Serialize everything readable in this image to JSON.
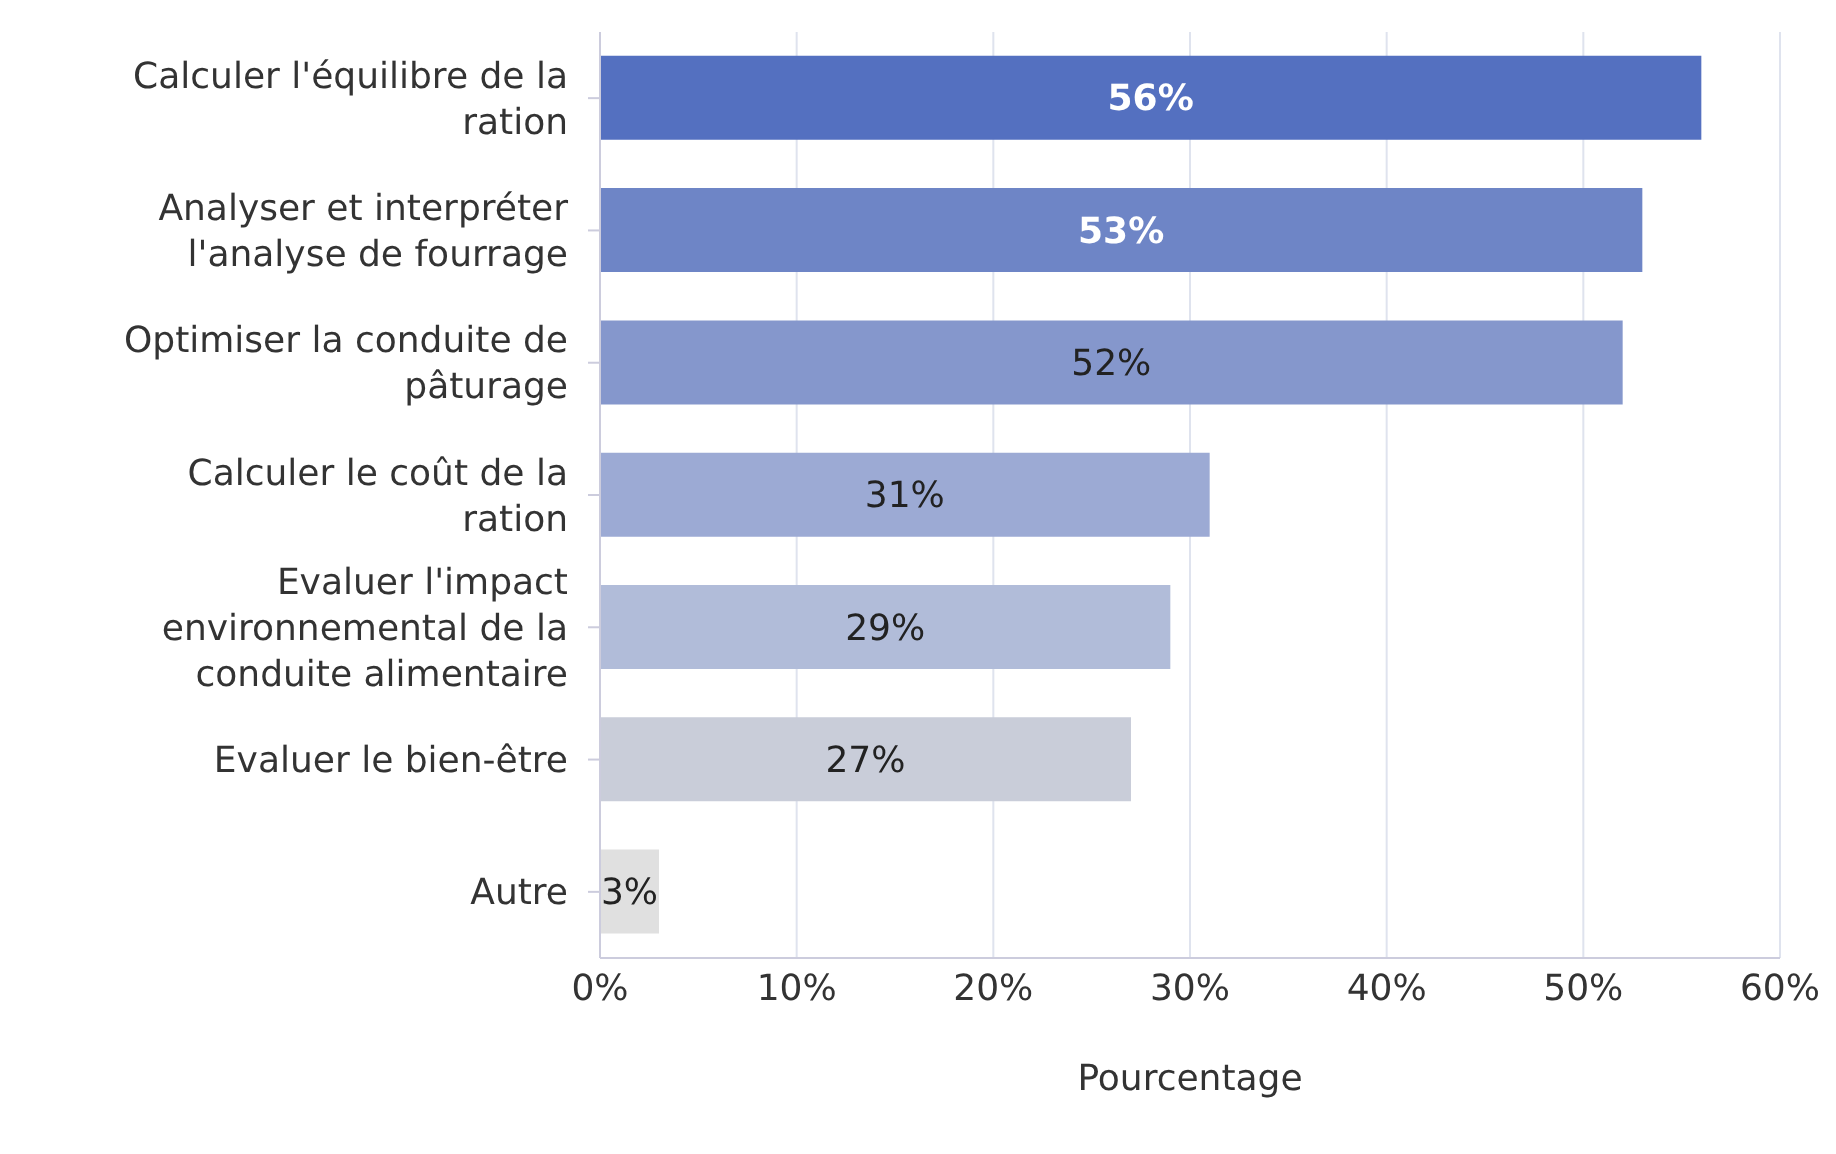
{
  "chart_data": {
    "type": "bar",
    "orientation": "horizontal",
    "xlabel": "Pourcentage",
    "categories": [
      "Calculer l'équilibre de la ration",
      "Analyser et interpréter l'analyse de fourrage",
      "Optimiser la conduite de pâturage",
      "Calculer le coût de la ration",
      "Evaluer l'impact environnemental de la conduite alimentaire",
      "Evaluer le bien-être",
      "Autre"
    ],
    "values": [
      56,
      53,
      52,
      31,
      29,
      27,
      3
    ],
    "colors": [
      "#5470c0",
      "#6e85c6",
      "#8597cc",
      "#9caad4",
      "#b1bcd9",
      "#c9cdd9",
      "#e0e0e0"
    ],
    "xlim": [
      0,
      60
    ],
    "xticks": [
      {
        "value": 0,
        "label": "0%"
      },
      {
        "value": 10,
        "label": "10%"
      },
      {
        "value": 20,
        "label": "20%"
      },
      {
        "value": 30,
        "label": "30%"
      },
      {
        "value": 40,
        "label": "40%"
      },
      {
        "value": 50,
        "label": "50%"
      },
      {
        "value": 60,
        "label": "60%"
      }
    ],
    "value_labels": [
      "56%",
      "53%",
      "52%",
      "31%",
      "29%",
      "27%",
      "3%"
    ],
    "grid": "x",
    "legend": false
  }
}
